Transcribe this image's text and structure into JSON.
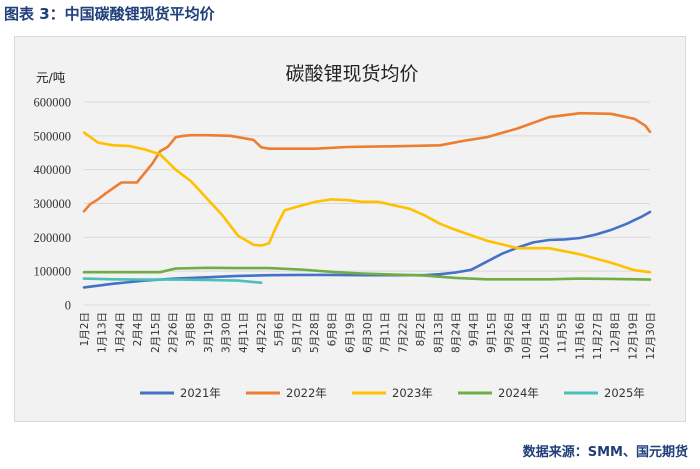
{
  "figure_title": "图表 3：中国碳酸锂现货平均价",
  "source": "数据来源：SMM、国元期货",
  "chart_data": {
    "type": "line",
    "title": "碳酸锂现货均价",
    "ylabel": "元/吨",
    "ylim": [
      0,
      600000
    ],
    "yticks": [
      "600000",
      "500000",
      "400000",
      "300000",
      "200000",
      "100000",
      "0"
    ],
    "x_day_range": [
      1,
      365
    ],
    "xticks": [
      "1月2日",
      "1月13日",
      "1月24日",
      "2月4日",
      "2月15日",
      "2月26日",
      "3月8日",
      "3月19日",
      "3月30日",
      "4月11日",
      "4月22日",
      "5月6日",
      "5月17日",
      "5月28日",
      "6月8日",
      "6月19日",
      "6月30日",
      "7月11日",
      "7月22日",
      "8月2日",
      "8月13日",
      "8月24日",
      "9月4日",
      "9月15日",
      "9月26日",
      "10月14日",
      "10月25日",
      "11月5日",
      "11月16日",
      "11月27日",
      "12月8日",
      "12月19日",
      "12月30日"
    ],
    "grid": true,
    "legend_position": "bottom",
    "series": [
      {
        "name": "2021年",
        "color": "#4472c4",
        "x": [
          1,
          20,
          40,
          60,
          80,
          100,
          120,
          140,
          160,
          180,
          200,
          220,
          230,
          240,
          250,
          260,
          270,
          280,
          290,
          300,
          310,
          320,
          330,
          340,
          350,
          360,
          365
        ],
        "y": [
          52000,
          63000,
          72000,
          78000,
          82000,
          86000,
          88000,
          89000,
          89000,
          88000,
          88000,
          88000,
          91000,
          96000,
          104000,
          128000,
          152000,
          170000,
          185000,
          192000,
          194000,
          198000,
          208000,
          222000,
          240000,
          262000,
          275000
        ]
      },
      {
        "name": "2022年",
        "color": "#ed7d31",
        "x": [
          1,
          5,
          10,
          15,
          25,
          35,
          45,
          50,
          55,
          60,
          65,
          70,
          80,
          95,
          110,
          115,
          120,
          130,
          150,
          170,
          200,
          230,
          245,
          260,
          280,
          300,
          320,
          340,
          355,
          362,
          365
        ],
        "y": [
          277000,
          298000,
          312000,
          330000,
          362000,
          362000,
          418000,
          455000,
          468000,
          496000,
          500000,
          502000,
          502000,
          500000,
          488000,
          466000,
          462000,
          462000,
          462000,
          467000,
          469000,
          472000,
          485000,
          496000,
          522000,
          555000,
          567000,
          565000,
          550000,
          530000,
          512000
        ]
      },
      {
        "name": "2023年",
        "color": "#ffc000",
        "x": [
          1,
          10,
          20,
          30,
          40,
          50,
          60,
          70,
          80,
          90,
          100,
          110,
          115,
          120,
          125,
          130,
          140,
          150,
          160,
          170,
          180,
          190,
          200,
          210,
          220,
          230,
          240,
          260,
          280,
          300,
          320,
          340,
          355,
          365
        ],
        "y": [
          510000,
          480000,
          472000,
          470000,
          460000,
          445000,
          400000,
          365000,
          315000,
          265000,
          205000,
          178000,
          176000,
          182000,
          235000,
          280000,
          293000,
          305000,
          312000,
          310000,
          305000,
          305000,
          295000,
          285000,
          265000,
          240000,
          222000,
          190000,
          168000,
          168000,
          150000,
          125000,
          103000,
          97000
        ]
      },
      {
        "name": "2024年",
        "color": "#70ad47",
        "x": [
          1,
          30,
          50,
          60,
          80,
          100,
          120,
          140,
          160,
          180,
          200,
          220,
          240,
          260,
          280,
          300,
          320,
          340,
          365
        ],
        "y": [
          97000,
          97000,
          97000,
          108000,
          110000,
          109000,
          109000,
          105000,
          98000,
          93000,
          90000,
          87000,
          80000,
          76000,
          76000,
          76000,
          78000,
          77000,
          75000
        ]
      },
      {
        "name": "2025年",
        "color": "#4bc0b8",
        "x": [
          1,
          20,
          40,
          60,
          80,
          100,
          115
        ],
        "y": [
          78000,
          76000,
          75000,
          75000,
          74000,
          72000,
          66000
        ]
      }
    ]
  }
}
